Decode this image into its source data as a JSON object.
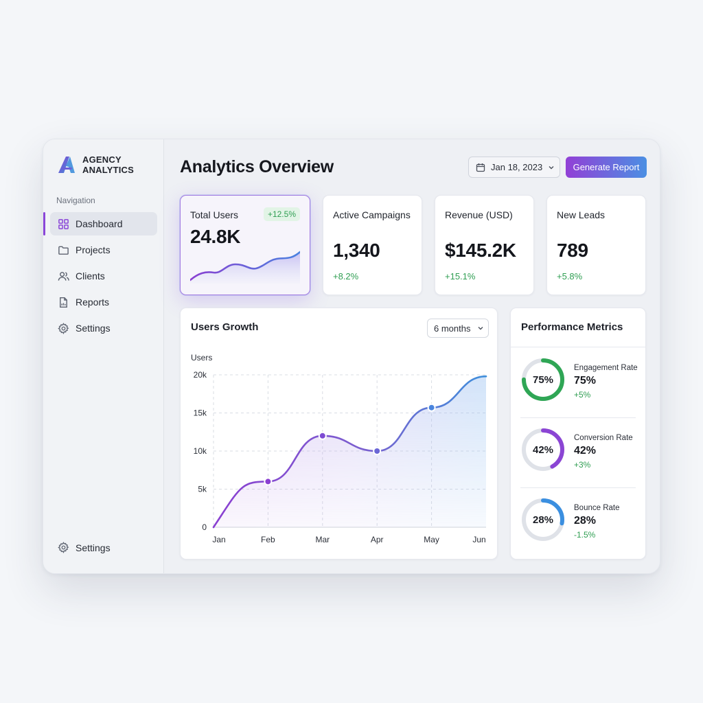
{
  "brand": {
    "line1": "AGENCY",
    "line2": "ANALYTICS"
  },
  "sidebar": {
    "heading": "Navigation",
    "items": [
      {
        "label": "Dashboard",
        "icon": "grid-icon",
        "active": true
      },
      {
        "label": "Projects",
        "icon": "folder-icon"
      },
      {
        "label": "Clients",
        "icon": "users-icon"
      },
      {
        "label": "Reports",
        "icon": "file-icon"
      },
      {
        "label": "Settings",
        "icon": "gear-icon"
      }
    ],
    "bottom": {
      "label": "Settings",
      "icon": "gear-icon"
    }
  },
  "header": {
    "title": "Analytics Overview",
    "date": "Jan 18, 2023",
    "generate_label": "Generate Report"
  },
  "stats": [
    {
      "label": "Total Users",
      "value": "24.8K",
      "badge": "+12.5%"
    },
    {
      "label": "Active Campaigns",
      "value": "1,340",
      "delta": "+8.2%"
    },
    {
      "label": "Revenue (USD)",
      "value": "$145.2K",
      "delta": "+15.1%"
    },
    {
      "label": "New Leads",
      "value": "789",
      "delta": "+5.8%"
    }
  ],
  "growth": {
    "title": "Users Growth",
    "range": "6 months"
  },
  "chart_data": {
    "type": "area",
    "ylabel": "Users",
    "categories": [
      "Jan",
      "Feb",
      "Mar",
      "Apr",
      "May",
      "Jun"
    ],
    "values": [
      0,
      6000,
      12000,
      10000,
      15700,
      19800
    ],
    "ylim": [
      0,
      20000
    ],
    "yticks": [
      0,
      5000,
      10000,
      15000,
      20000
    ],
    "ytick_labels": [
      "0",
      "5k",
      "10k",
      "15k",
      "20k"
    ],
    "grid": true,
    "colors": {
      "start": "#8a3fd1",
      "end": "#3f8fdb"
    }
  },
  "performance": {
    "title": "Performance Metrics",
    "metrics": [
      {
        "name": "Engagement Rate",
        "value": "75%",
        "percent": 75,
        "delta": "+5%",
        "color": "#2fa655"
      },
      {
        "name": "Conversion Rate",
        "value": "42%",
        "percent": 42,
        "delta": "+3%",
        "color": "#8b45d4"
      },
      {
        "name": "Bounce Rate",
        "value": "28%",
        "percent": 28,
        "delta": "-1.5%",
        "color": "#3b8fe0"
      }
    ]
  }
}
